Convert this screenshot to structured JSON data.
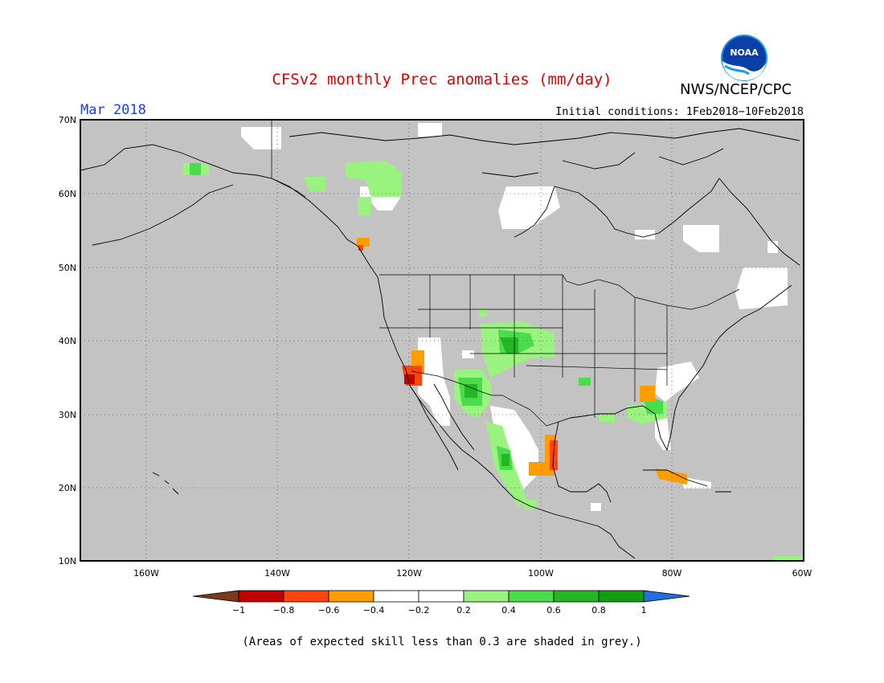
{
  "header": {
    "title": "CFSv2 monthly Prec anomalies (mm/day)",
    "agency": "NWS/NCEP/CPC",
    "logo_text": "NOAA",
    "month": "Mar 2018",
    "initial_conditions": "Initial conditions: 1Feb2018−10Feb2018"
  },
  "map": {
    "lat_labels": [
      "70N",
      "60N",
      "50N",
      "40N",
      "30N",
      "20N",
      "10N"
    ],
    "lon_labels": [
      "160W",
      "140W",
      "120W",
      "100W",
      "80W",
      "60W"
    ],
    "background_color": "#c3c3c3"
  },
  "colorbar": {
    "labels": [
      "−1",
      "−0.8",
      "−0.6",
      "−0.4",
      "−0.2",
      "0.2",
      "0.4",
      "0.6",
      "0.8",
      "1"
    ],
    "colors": [
      "#7a3a1e",
      "#c20000",
      "#ff4410",
      "#ff9c00",
      "#ffffff",
      "#9af27f",
      "#4bdc4b",
      "#25b625",
      "#109d10",
      "#1f6fe0"
    ]
  },
  "footnote": "(Areas of expected skill less than 0.3 are shaded in grey.)"
}
